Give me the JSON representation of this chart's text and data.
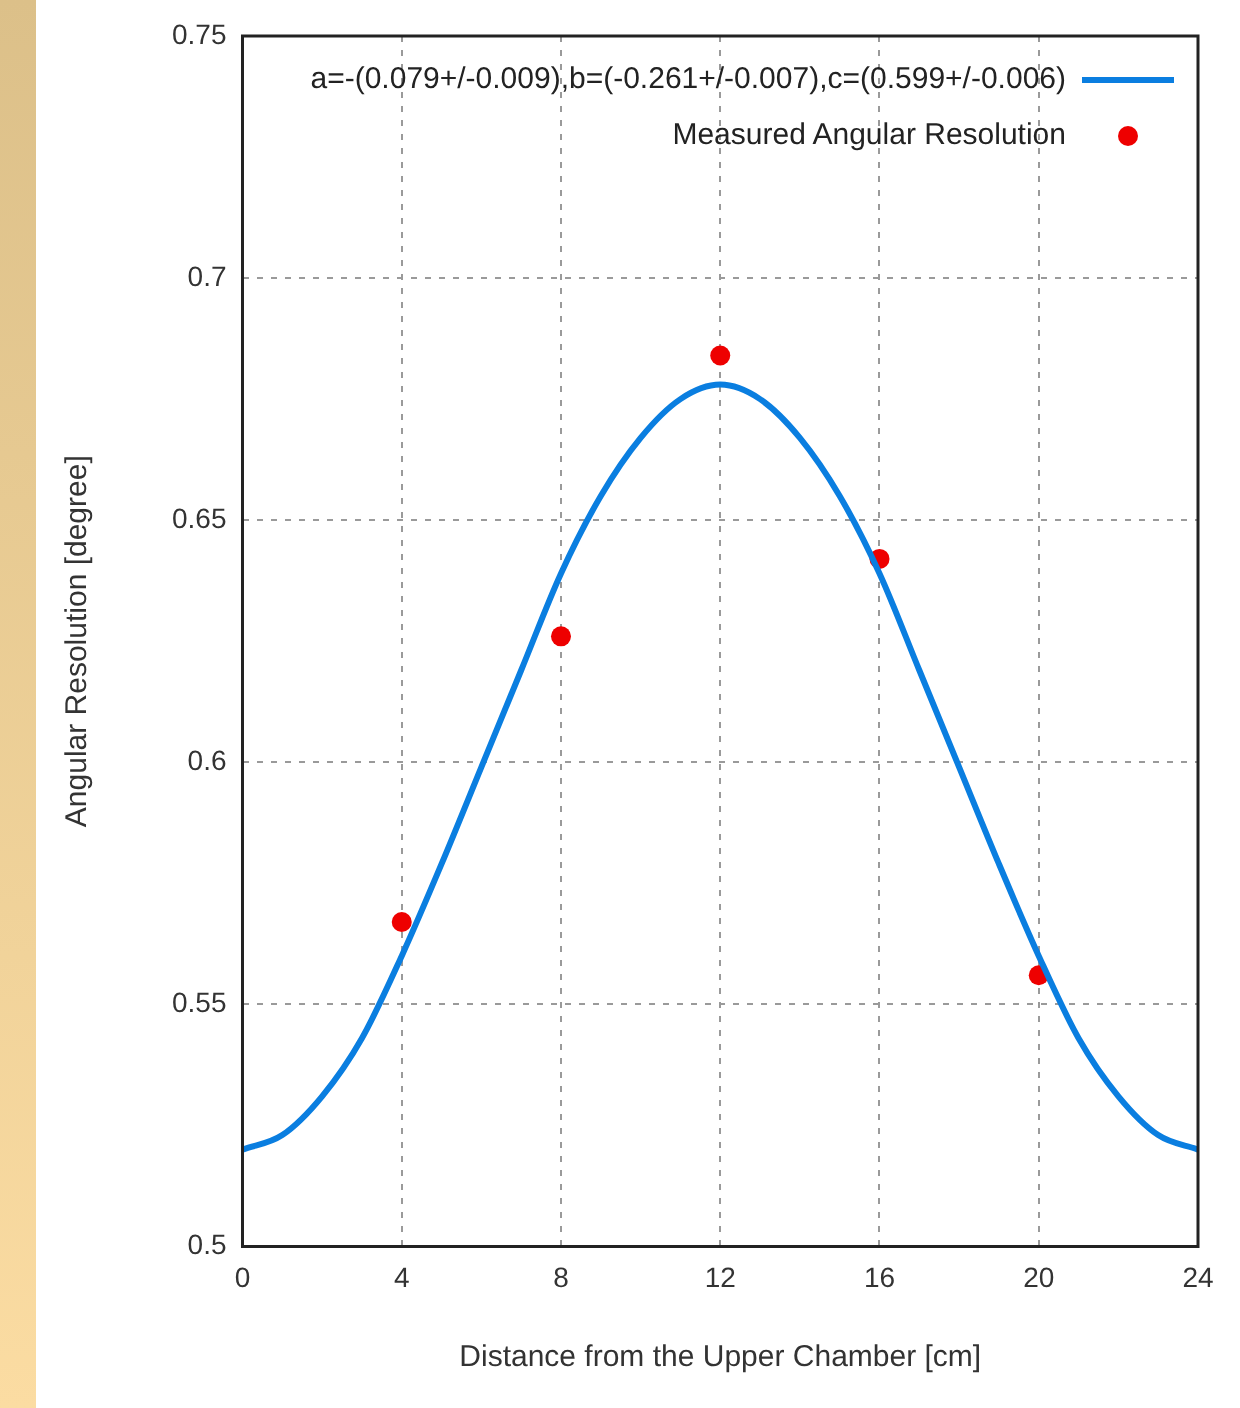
{
  "chart_data": {
    "type": "scatter",
    "xlabel": "Distance from the Upper Chamber [cm]",
    "ylabel": "Angular Resolution [degree]",
    "xlim": [
      0,
      24
    ],
    "xticks": [
      0,
      4,
      8,
      12,
      16,
      20,
      24
    ],
    "ylim": [
      0.5,
      0.75
    ],
    "yticks": [
      0.5,
      0.55,
      0.6,
      0.65,
      0.7,
      0.75
    ],
    "grid": true,
    "legend": "top right",
    "series": [
      {
        "type": "line",
        "name": "a=-(0.079+/-0.009),b=(-0.261+/-0.007),c=(0.599+/-0.006)",
        "color": "#0a7ee0",
        "marker": "none",
        "line_style": "solid",
        "x": [
          0,
          1,
          2,
          3,
          4,
          5,
          6,
          7,
          8,
          9,
          10,
          11,
          12,
          13,
          14,
          15,
          16,
          17,
          18,
          19,
          20,
          21,
          22,
          23,
          24
        ],
        "values": [
          0.52,
          0.523,
          0.531,
          0.543,
          0.56,
          0.579,
          0.599,
          0.619,
          0.639,
          0.655,
          0.667,
          0.675,
          0.678,
          0.675,
          0.667,
          0.655,
          0.639,
          0.619,
          0.599,
          0.579,
          0.56,
          0.543,
          0.531,
          0.523,
          0.52
        ]
      },
      {
        "type": "scatter",
        "name": "Measured Angular Resolution",
        "color": "#ee0000",
        "marker": "circle",
        "x": [
          4,
          8,
          12,
          16,
          20
        ],
        "values": [
          0.567,
          0.626,
          0.684,
          0.642,
          0.556
        ]
      }
    ]
  }
}
